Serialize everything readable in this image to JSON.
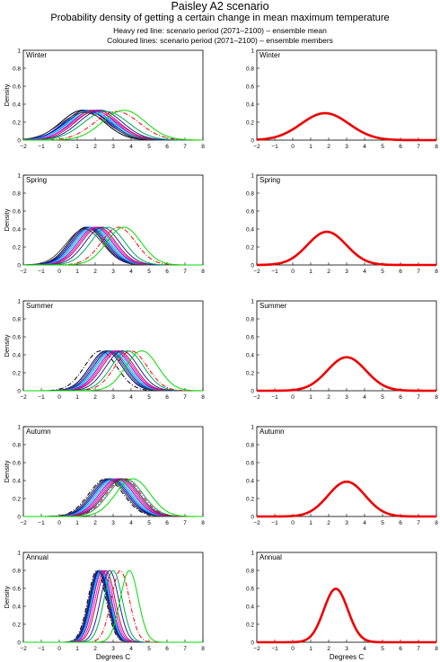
{
  "header": {
    "title": "Paisley A2 scenario",
    "subtitle": "Probability density of getting a certain change in mean maximum temperature",
    "note_mean": "Heavy red line: scenario period (2071–2100) – ensemble mean",
    "note_members": "Coloured lines: scenario period (2071–2100) – ensemble members"
  },
  "axes_common": {
    "x_ticks": [
      -2,
      -1,
      0,
      1,
      2,
      3,
      4,
      5,
      6,
      7,
      8
    ],
    "y_ticks": [
      0,
      0.2,
      0.4,
      0.6,
      0.8,
      1
    ],
    "y_tick_labels": [
      "0",
      "0.2",
      "0.4",
      "0.6",
      "0.8",
      "1"
    ],
    "xlim": [
      -2,
      8
    ],
    "ylim": [
      0,
      1
    ],
    "ylabel": "Density",
    "xlabel": "Degrees C"
  },
  "colors": {
    "ensemble_mean": "#ee0000",
    "members": [
      "#000000",
      "#000080",
      "#0000ff",
      "#00a0a0",
      "#00c8ff",
      "#aa00aa",
      "#ff00ff",
      "#aa2222",
      "#444444",
      "#2222aa",
      "#00aa55",
      "#ff0000",
      "#00dd00"
    ]
  },
  "chart_data": [
    {
      "type": "line",
      "panel": "members",
      "season": "Winter",
      "series": [
        {
          "mean": 1.3,
          "sd": 1.2,
          "color": "#000000"
        },
        {
          "mean": 1.5,
          "sd": 1.2,
          "color": "#000080"
        },
        {
          "mean": 1.6,
          "sd": 1.25,
          "color": "#0000ff"
        },
        {
          "mean": 1.7,
          "sd": 1.2,
          "color": "#00a0a0"
        },
        {
          "mean": 1.8,
          "sd": 1.25,
          "color": "#00c8ff"
        },
        {
          "mean": 1.9,
          "sd": 1.2,
          "color": "#aa00aa"
        },
        {
          "mean": 2.0,
          "sd": 1.25,
          "color": "#ff00ff"
        },
        {
          "mean": 2.1,
          "sd": 1.2,
          "color": "#aa2222"
        },
        {
          "mean": 1.4,
          "sd": 1.3,
          "color": "#444444"
        },
        {
          "mean": 2.3,
          "sd": 1.2,
          "color": "#2222aa"
        },
        {
          "mean": 2.6,
          "sd": 1.25,
          "color": "#00aa55"
        },
        {
          "mean": 3.2,
          "sd": 1.25,
          "color": "#ff0000",
          "dash": "dashdot"
        },
        {
          "mean": 3.6,
          "sd": 1.2,
          "color": "#00dd00"
        }
      ]
    },
    {
      "type": "line",
      "panel": "ensemble_mean",
      "season": "Winter",
      "series": [
        {
          "mean": 1.8,
          "sd": 1.33,
          "color": "#ee0000"
        }
      ]
    },
    {
      "type": "line",
      "panel": "members",
      "season": "Spring",
      "series": [
        {
          "mean": 1.5,
          "sd": 0.95,
          "color": "#000000"
        },
        {
          "mean": 1.6,
          "sd": 0.95,
          "color": "#000080"
        },
        {
          "mean": 1.7,
          "sd": 0.95,
          "color": "#0000ff"
        },
        {
          "mean": 1.8,
          "sd": 0.95,
          "color": "#00a0a0"
        },
        {
          "mean": 1.9,
          "sd": 0.95,
          "color": "#00c8ff"
        },
        {
          "mean": 2.0,
          "sd": 0.95,
          "color": "#aa00aa"
        },
        {
          "mean": 2.1,
          "sd": 0.95,
          "color": "#ff00ff"
        },
        {
          "mean": 2.2,
          "sd": 0.95,
          "color": "#aa2222"
        },
        {
          "mean": 1.4,
          "sd": 1.0,
          "color": "#444444"
        },
        {
          "mean": 2.4,
          "sd": 0.95,
          "color": "#2222aa"
        },
        {
          "mean": 2.7,
          "sd": 0.95,
          "color": "#00aa55"
        },
        {
          "mean": 3.3,
          "sd": 0.95,
          "color": "#ff0000",
          "dash": "dashdot"
        },
        {
          "mean": 3.6,
          "sd": 0.95,
          "color": "#00dd00"
        }
      ]
    },
    {
      "type": "line",
      "panel": "ensemble_mean",
      "season": "Spring",
      "series": [
        {
          "mean": 1.9,
          "sd": 1.08,
          "color": "#ee0000"
        }
      ]
    },
    {
      "type": "line",
      "panel": "members",
      "season": "Summer",
      "series": [
        {
          "mean": 2.3,
          "sd": 0.9,
          "color": "#000000",
          "dash": "dashdot"
        },
        {
          "mean": 2.6,
          "sd": 0.9,
          "color": "#000080"
        },
        {
          "mean": 2.8,
          "sd": 0.9,
          "color": "#0000ff"
        },
        {
          "mean": 2.9,
          "sd": 0.9,
          "color": "#00a0a0"
        },
        {
          "mean": 3.0,
          "sd": 0.9,
          "color": "#00c8ff"
        },
        {
          "mean": 3.1,
          "sd": 0.9,
          "color": "#aa00aa"
        },
        {
          "mean": 3.2,
          "sd": 0.9,
          "color": "#ff00ff"
        },
        {
          "mean": 3.3,
          "sd": 0.9,
          "color": "#aa2222"
        },
        {
          "mean": 2.7,
          "sd": 0.9,
          "color": "#444444"
        },
        {
          "mean": 3.5,
          "sd": 0.9,
          "color": "#2222aa"
        },
        {
          "mean": 3.8,
          "sd": 0.9,
          "color": "#00aa55"
        },
        {
          "mean": 4.0,
          "sd": 0.9,
          "color": "#ff0000",
          "dash": "dashdot"
        },
        {
          "mean": 4.6,
          "sd": 0.9,
          "color": "#00dd00"
        }
      ]
    },
    {
      "type": "line",
      "panel": "ensemble_mean",
      "season": "Summer",
      "series": [
        {
          "mean": 3.0,
          "sd": 1.07,
          "color": "#ee0000"
        }
      ]
    },
    {
      "type": "line",
      "panel": "members",
      "season": "Autumn",
      "series": [
        {
          "mean": 2.6,
          "sd": 0.95,
          "color": "#000000",
          "dash": "dashdot"
        },
        {
          "mean": 2.8,
          "sd": 0.95,
          "color": "#000080"
        },
        {
          "mean": 2.9,
          "sd": 0.95,
          "color": "#0000ff"
        },
        {
          "mean": 3.0,
          "sd": 0.95,
          "color": "#00a0a0"
        },
        {
          "mean": 3.1,
          "sd": 0.95,
          "color": "#00c8ff"
        },
        {
          "mean": 3.2,
          "sd": 0.95,
          "color": "#aa00aa"
        },
        {
          "mean": 3.3,
          "sd": 0.95,
          "color": "#ff00ff"
        },
        {
          "mean": 3.4,
          "sd": 0.95,
          "color": "#aa2222"
        },
        {
          "mean": 2.7,
          "sd": 0.95,
          "color": "#444444"
        },
        {
          "mean": 3.5,
          "sd": 0.95,
          "color": "#2222aa"
        },
        {
          "mean": 3.7,
          "sd": 0.95,
          "color": "#00aa55"
        },
        {
          "mean": 3.6,
          "sd": 0.95,
          "color": "#ff0000",
          "dash": "dashdot"
        },
        {
          "mean": 4.1,
          "sd": 0.95,
          "color": "#00dd00"
        }
      ]
    },
    {
      "type": "line",
      "panel": "ensemble_mean",
      "season": "Autumn",
      "series": [
        {
          "mean": 3.0,
          "sd": 1.03,
          "color": "#ee0000"
        }
      ]
    },
    {
      "type": "line",
      "panel": "members",
      "season": "Annual",
      "series": [
        {
          "mean": 2.1,
          "sd": 0.5,
          "color": "#000000",
          "dash": "dashdot"
        },
        {
          "mean": 2.2,
          "sd": 0.5,
          "color": "#000080"
        },
        {
          "mean": 2.25,
          "sd": 0.5,
          "color": "#0000ff"
        },
        {
          "mean": 2.3,
          "sd": 0.5,
          "color": "#00a0a0"
        },
        {
          "mean": 2.35,
          "sd": 0.5,
          "color": "#00c8ff"
        },
        {
          "mean": 2.4,
          "sd": 0.5,
          "color": "#aa00aa"
        },
        {
          "mean": 2.5,
          "sd": 0.5,
          "color": "#ff00ff"
        },
        {
          "mean": 2.6,
          "sd": 0.5,
          "color": "#aa2222"
        },
        {
          "mean": 2.15,
          "sd": 0.5,
          "color": "#444444"
        },
        {
          "mean": 2.8,
          "sd": 0.5,
          "color": "#2222aa"
        },
        {
          "mean": 3.0,
          "sd": 0.5,
          "color": "#00aa55"
        },
        {
          "mean": 3.4,
          "sd": 0.5,
          "color": "#ff0000",
          "dash": "dashdot"
        },
        {
          "mean": 3.9,
          "sd": 0.5,
          "color": "#00dd00"
        }
      ]
    },
    {
      "type": "line",
      "panel": "ensemble_mean",
      "season": "Annual",
      "series": [
        {
          "mean": 2.4,
          "sd": 0.67,
          "color": "#ee0000"
        }
      ]
    }
  ]
}
